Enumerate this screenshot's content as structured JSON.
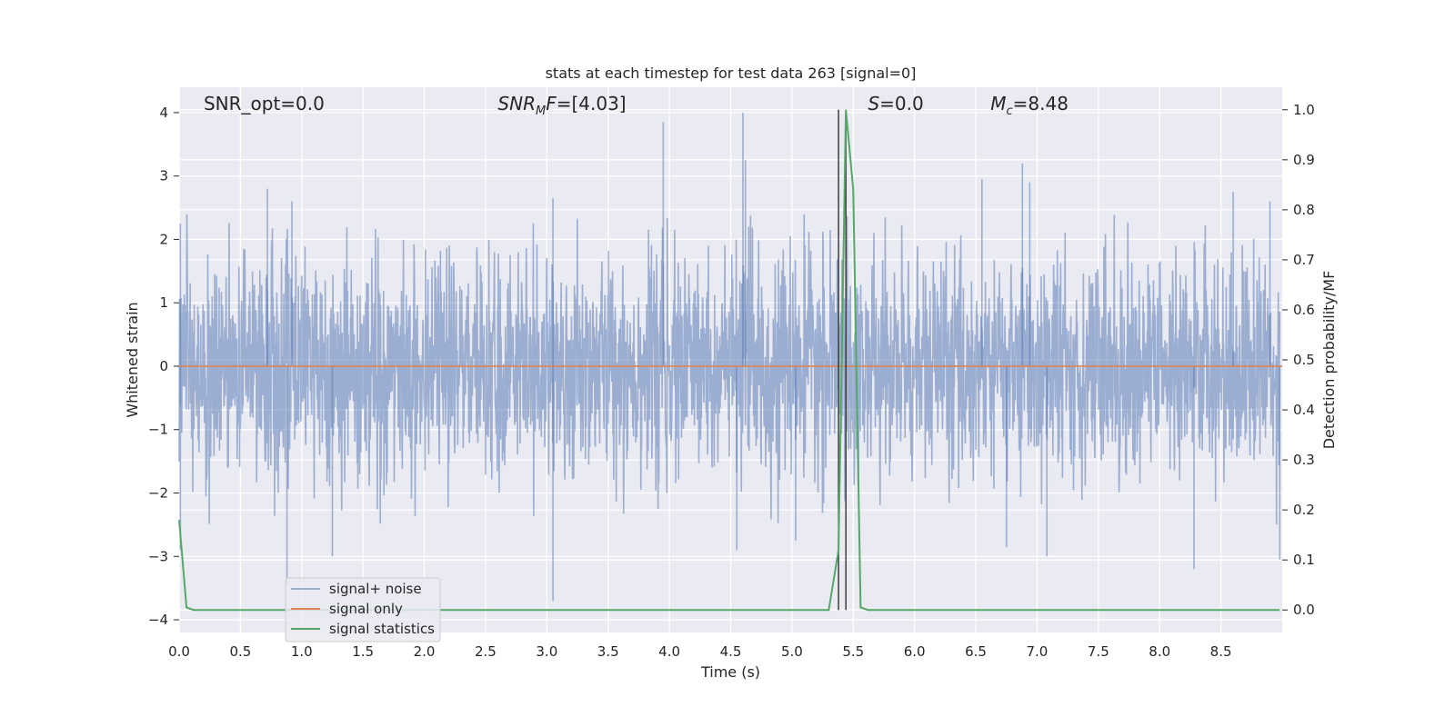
{
  "chart_data": {
    "type": "line",
    "title": "stats at each timestep for test data 263 [signal=0]",
    "xlabel": "Time (s)",
    "ylabel_left": "Whitened strain",
    "ylabel_right": "Detection probability/MF",
    "xlim": [
      0.0,
      9.0
    ],
    "ylim_left": [
      -4.2,
      4.4
    ],
    "ylim_right": [
      -0.045,
      1.045
    ],
    "xticks": [
      "0.0",
      "0.5",
      "1.0",
      "1.5",
      "2.0",
      "2.5",
      "3.0",
      "3.5",
      "4.0",
      "4.5",
      "5.0",
      "5.5",
      "6.0",
      "6.5",
      "7.0",
      "7.5",
      "8.0",
      "8.5"
    ],
    "yticks_left": [
      "4",
      "3",
      "2",
      "1",
      "0",
      "−1",
      "−2",
      "−3",
      "−4"
    ],
    "yticks_right": [
      "1.0",
      "0.9",
      "0.8",
      "0.7",
      "0.6",
      "0.5",
      "0.4",
      "0.3",
      "0.2",
      "0.1",
      "0.0"
    ],
    "grid": true,
    "background": "#EAEAF2",
    "annotations": {
      "snr_opt": "SNR_opt=0.0",
      "snr_mf_main": "SNR",
      "snr_mf_sub": "M",
      "snr_mf_rest": "F=[4.03]",
      "s_main": "S",
      "s_rest": "=0.0",
      "mc_main": "M",
      "mc_sub": "c",
      "mc_rest": "=8.48"
    },
    "legend": {
      "placement": "lower-left",
      "entries": [
        "signal+ noise",
        "signal only",
        "signal statistics"
      ]
    },
    "series": [
      {
        "name": "signal+ noise",
        "axis": "left",
        "color": "#4C72B0",
        "alpha": 0.5,
        "description_range": [
          -3.7,
          4.0
        ],
        "peaks": [
          {
            "x": 0.01,
            "y": 2.25
          },
          {
            "x": 0.72,
            "y": 2.8
          },
          {
            "x": 0.92,
            "y": 2.6
          },
          {
            "x": 3.05,
            "y": 2.65
          },
          {
            "x": 3.95,
            "y": 3.85
          },
          {
            "x": 4.6,
            "y": 4.0
          },
          {
            "x": 4.62,
            "y": 3.25
          },
          {
            "x": 6.55,
            "y": 2.95
          },
          {
            "x": 6.88,
            "y": 3.2
          },
          {
            "x": 6.94,
            "y": 2.9
          },
          {
            "x": 8.6,
            "y": 2.75
          },
          {
            "x": 8.9,
            "y": 2.6
          }
        ],
        "troughs": [
          {
            "x": 0.01,
            "y": -2.9
          },
          {
            "x": 0.88,
            "y": -3.45
          },
          {
            "x": 1.25,
            "y": -3.0
          },
          {
            "x": 3.05,
            "y": -3.7
          },
          {
            "x": 4.55,
            "y": -2.9
          },
          {
            "x": 5.03,
            "y": -2.75
          },
          {
            "x": 6.75,
            "y": -2.85
          },
          {
            "x": 7.08,
            "y": -3.0
          },
          {
            "x": 8.28,
            "y": -3.2
          },
          {
            "x": 8.98,
            "y": -3.05
          }
        ]
      },
      {
        "name": "signal only",
        "axis": "left",
        "color": "#DD8452",
        "x": [
          0.0,
          9.0
        ],
        "y": [
          0.0,
          0.0
        ]
      },
      {
        "name": "signal statistics",
        "axis": "right",
        "color": "#55A868",
        "x": [
          0.0,
          0.06,
          0.12,
          5.3,
          5.38,
          5.44,
          5.5,
          5.56,
          5.62,
          8.98
        ],
        "y": [
          0.18,
          0.005,
          0.0,
          0.0,
          0.12,
          1.0,
          0.84,
          0.005,
          0.0,
          0.0
        ]
      }
    ],
    "vertical_lines": [
      {
        "x": 5.38,
        "color": "#333333"
      },
      {
        "x": 5.44,
        "color": "#333333"
      }
    ]
  }
}
